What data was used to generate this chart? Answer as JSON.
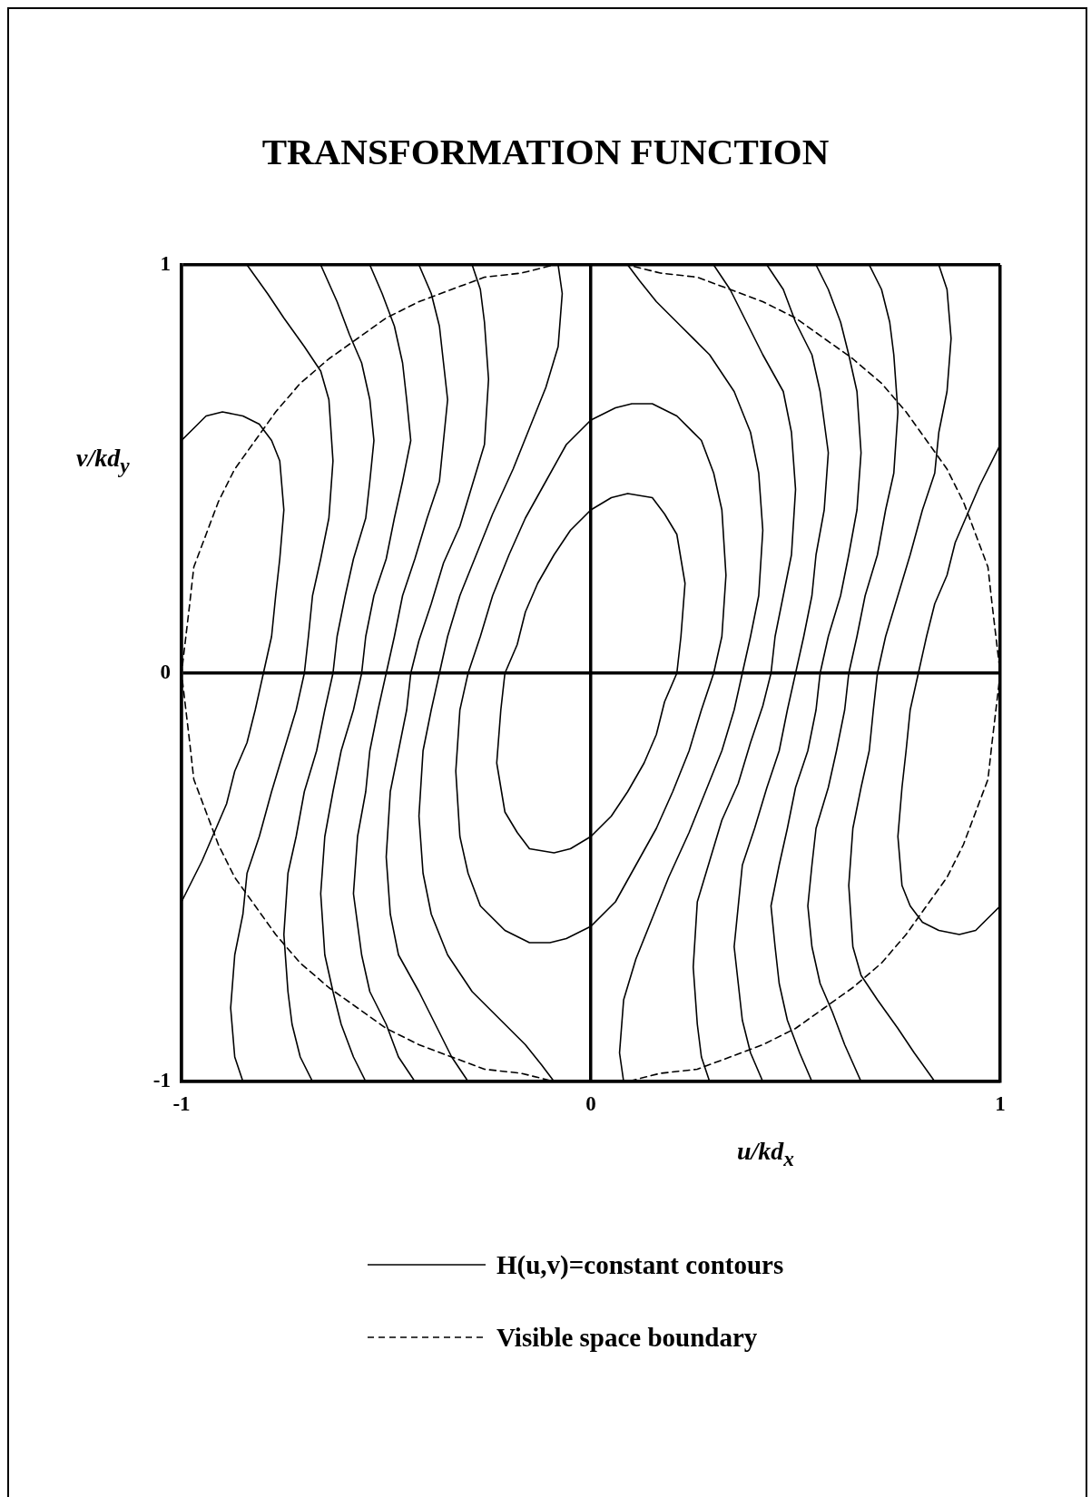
{
  "chart_data": {
    "type": "line",
    "title": "TRANSFORMATION FUNCTION",
    "xlabel": "u/kd$_{x}$",
    "ylabel": "v/kd$_{y}$",
    "xlim": [
      -1,
      1
    ],
    "ylim": [
      -1,
      1
    ],
    "xticks": [
      -1,
      0,
      1
    ],
    "yticks": [
      -1,
      0,
      1
    ],
    "grid": true,
    "legend": "bottom",
    "marker": "none",
    "series": [
      {
        "name": "H(u,v)=constant contours",
        "color": "#000000",
        "x": [
          -0.84,
          -0.79,
          -0.75,
          -0.7,
          -0.66,
          -0.64,
          -0.63,
          -0.64,
          -0.66,
          -0.68,
          -0.69,
          -0.7,
          -0.72,
          -0.75,
          -0.78,
          -0.81,
          -0.84,
          -0.85,
          -0.87,
          -0.88,
          -0.87,
          -0.85
        ],
        "values": [
          1,
          0.93,
          0.87,
          0.8,
          0.74,
          0.67,
          0.52,
          0.38,
          0.28,
          0.19,
          0.09,
          0,
          -0.09,
          -0.19,
          -0.29,
          -0.4,
          -0.49,
          -0.59,
          -0.69,
          -0.82,
          -0.94,
          -1
        ]
      },
      {
        "color": "#000000",
        "x": [
          -0.66,
          -0.62,
          -0.59,
          -0.56,
          -0.54,
          -0.53,
          -0.54,
          -0.55,
          -0.58,
          -0.6,
          -0.62,
          -0.63,
          -0.65,
          -0.67,
          -0.7,
          -0.72,
          -0.74,
          -0.75,
          -0.74,
          -0.73,
          -0.71,
          -0.68
        ],
        "values": [
          1,
          0.91,
          0.83,
          0.76,
          0.67,
          0.57,
          0.47,
          0.38,
          0.28,
          0.19,
          0.09,
          0,
          -0.09,
          -0.19,
          -0.29,
          -0.4,
          -0.49,
          -0.64,
          -0.78,
          -0.86,
          -0.94,
          -1
        ]
      },
      {
        "color": "#000000",
        "x": [
          -0.54,
          -0.51,
          -0.48,
          -0.46,
          -0.45,
          -0.44,
          -0.46,
          -0.48,
          -0.5,
          -0.53,
          -0.55,
          -0.56,
          -0.58,
          -0.61,
          -0.63,
          -0.65,
          -0.66,
          -0.65,
          -0.63,
          -0.61,
          -0.58,
          -0.55
        ],
        "values": [
          1,
          0.93,
          0.85,
          0.76,
          0.67,
          0.57,
          0.47,
          0.38,
          0.28,
          0.19,
          0.09,
          0,
          -0.09,
          -0.19,
          -0.29,
          -0.4,
          -0.54,
          -0.69,
          -0.78,
          -0.86,
          -0.94,
          -1
        ]
      },
      {
        "color": "#000000",
        "x": [
          -0.42,
          -0.39,
          -0.37,
          -0.36,
          -0.35,
          -0.36,
          -0.37,
          -0.4,
          -0.43,
          -0.46,
          -0.48,
          -0.5,
          -0.52,
          -0.54,
          -0.55,
          -0.57,
          -0.58,
          -0.56,
          -0.54,
          -0.5,
          -0.47,
          -0.43
        ],
        "values": [
          1,
          0.93,
          0.85,
          0.76,
          0.67,
          0.57,
          0.47,
          0.38,
          0.28,
          0.19,
          0.09,
          0,
          -0.09,
          -0.19,
          -0.29,
          -0.4,
          -0.54,
          -0.69,
          -0.78,
          -0.86,
          -0.94,
          -1
        ]
      },
      {
        "color": "#000000",
        "x": [
          -0.29,
          -0.27,
          -0.26,
          -0.25,
          -0.26,
          -0.29,
          -0.32,
          -0.36,
          -0.39,
          -0.42,
          -0.44,
          -0.45,
          -0.47,
          -0.49,
          -0.5,
          -0.49,
          -0.47,
          -0.42,
          -0.38,
          -0.34,
          -0.3
        ],
        "values": [
          1,
          0.94,
          0.86,
          0.72,
          0.56,
          0.46,
          0.36,
          0.27,
          0.17,
          0.08,
          0,
          -0.09,
          -0.19,
          -0.29,
          -0.45,
          -0.59,
          -0.69,
          -0.78,
          -0.86,
          -0.94,
          -1
        ]
      },
      {
        "color": "#000000",
        "x": [
          -0.08,
          -0.07,
          -0.08,
          -0.11,
          -0.15,
          -0.19,
          -0.24,
          -0.28,
          -0.32,
          -0.35,
          -0.37,
          -0.39,
          -0.41,
          -0.42,
          -0.41,
          -0.39,
          -0.35,
          -0.29,
          -0.22,
          -0.16,
          -0.12,
          -0.09
        ],
        "values": [
          1,
          0.93,
          0.8,
          0.7,
          0.6,
          0.5,
          0.39,
          0.29,
          0.19,
          0.09,
          0,
          -0.09,
          -0.19,
          -0.35,
          -0.49,
          -0.59,
          -0.69,
          -0.78,
          -0.85,
          -0.91,
          -0.96,
          -1
        ]
      },
      {
        "color": "#000000",
        "x": [
          -1,
          -0.97,
          -0.94,
          -0.9,
          -0.85,
          -0.81,
          -0.78,
          -0.76,
          -0.75,
          -0.76,
          -0.77,
          -0.78,
          -0.8,
          -0.82,
          -0.84,
          -0.87,
          -0.89,
          -0.92,
          -0.95,
          -1
        ],
        "values": [
          0.57,
          0.6,
          0.63,
          0.64,
          0.63,
          0.61,
          0.57,
          0.52,
          0.4,
          0.28,
          0.19,
          0.09,
          0,
          -0.09,
          -0.17,
          -0.24,
          -0.32,
          -0.39,
          -0.46,
          -0.56
        ]
      },
      {
        "color": "#000000",
        "x": [
          -0.23,
          -0.22,
          -0.21,
          -0.18,
          -0.16,
          -0.13,
          -0.09,
          -0.05,
          0,
          0.05,
          0.09,
          0.15,
          0.18,
          0.21,
          0.23,
          0.22,
          0.21,
          0.18,
          0.16,
          0.13,
          0.09,
          0.05,
          0,
          -0.05,
          -0.09,
          -0.15,
          -0.18,
          -0.21,
          -0.23,
          -0.22
        ],
        "values": [
          -0.22,
          -0.09,
          0,
          0.07,
          0.15,
          0.22,
          0.29,
          0.35,
          0.4,
          0.43,
          0.44,
          0.43,
          0.39,
          0.34,
          0.22,
          0.09,
          0,
          -0.07,
          -0.15,
          -0.22,
          -0.29,
          -0.35,
          -0.4,
          -0.43,
          -0.44,
          -0.43,
          -0.39,
          -0.34,
          -0.22,
          -0.09
        ]
      },
      {
        "color": "#000000",
        "x": [
          -0.33,
          -0.32,
          -0.3,
          -0.27,
          -0.24,
          -0.2,
          -0.16,
          -0.11,
          -0.06,
          0,
          0.06,
          0.1,
          0.15,
          0.21,
          0.27,
          0.3,
          0.32,
          0.33,
          0.32,
          0.3,
          0.27,
          0.24,
          0.2,
          0.16,
          0.11,
          0.06,
          0,
          -0.06,
          -0.1,
          -0.15,
          -0.21,
          -0.27,
          -0.3,
          -0.32,
          -0.33,
          -0.32
        ],
        "values": [
          -0.24,
          -0.09,
          0,
          0.09,
          0.19,
          0.29,
          0.38,
          0.47,
          0.56,
          0.62,
          0.65,
          0.66,
          0.66,
          0.63,
          0.57,
          0.49,
          0.4,
          0.24,
          0.09,
          0,
          -0.09,
          -0.19,
          -0.29,
          -0.38,
          -0.47,
          -0.56,
          -0.62,
          -0.65,
          -0.66,
          -0.66,
          -0.63,
          -0.57,
          -0.49,
          -0.4,
          -0.24,
          -0.09
        ]
      },
      {
        "color": "#000000",
        "x": [
          0.85,
          0.87,
          0.88,
          0.87,
          0.85,
          0.84,
          0.81,
          0.78,
          0.75,
          0.72,
          0.7,
          0.69,
          0.68,
          0.66,
          0.64,
          0.63,
          0.64,
          0.66,
          0.7,
          0.75,
          0.79,
          0.84
        ],
        "values": [
          1,
          0.94,
          0.82,
          0.69,
          0.59,
          0.49,
          0.4,
          0.29,
          0.19,
          0.09,
          0,
          -0.09,
          -0.19,
          -0.28,
          -0.38,
          -0.52,
          -0.67,
          -0.74,
          -0.8,
          -0.87,
          -0.93,
          -1
        ]
      },
      {
        "color": "#000000",
        "x": [
          0.68,
          0.71,
          0.73,
          0.74,
          0.75,
          0.74,
          0.72,
          0.7,
          0.67,
          0.65,
          0.63,
          0.62,
          0.6,
          0.58,
          0.55,
          0.54,
          0.53,
          0.54,
          0.56,
          0.59,
          0.62,
          0.66
        ],
        "values": [
          1,
          0.94,
          0.86,
          0.78,
          0.64,
          0.49,
          0.4,
          0.29,
          0.19,
          0.09,
          0,
          -0.09,
          -0.19,
          -0.28,
          -0.38,
          -0.47,
          -0.57,
          -0.67,
          -0.76,
          -0.83,
          -0.91,
          -1
        ]
      },
      {
        "color": "#000000",
        "x": [
          0.55,
          0.58,
          0.61,
          0.63,
          0.65,
          0.66,
          0.65,
          0.63,
          0.61,
          0.58,
          0.56,
          0.55,
          0.53,
          0.5,
          0.48,
          0.46,
          0.44,
          0.45,
          0.46,
          0.48,
          0.51,
          0.54
        ],
        "values": [
          1,
          0.94,
          0.86,
          0.78,
          0.69,
          0.54,
          0.4,
          0.29,
          0.19,
          0.09,
          0,
          -0.09,
          -0.19,
          -0.28,
          -0.38,
          -0.47,
          -0.57,
          -0.67,
          -0.76,
          -0.85,
          -0.93,
          -1
        ]
      },
      {
        "color": "#000000",
        "x": [
          0.43,
          0.47,
          0.5,
          0.54,
          0.56,
          0.58,
          0.57,
          0.55,
          0.54,
          0.52,
          0.5,
          0.48,
          0.46,
          0.43,
          0.4,
          0.37,
          0.36,
          0.35,
          0.36,
          0.37,
          0.39,
          0.42
        ],
        "values": [
          1,
          0.94,
          0.86,
          0.78,
          0.69,
          0.54,
          0.4,
          0.29,
          0.19,
          0.09,
          0,
          -0.09,
          -0.19,
          -0.28,
          -0.38,
          -0.47,
          -0.57,
          -0.67,
          -0.76,
          -0.85,
          -0.93,
          -1
        ]
      },
      {
        "color": "#000000",
        "x": [
          0.3,
          0.34,
          0.38,
          0.42,
          0.47,
          0.49,
          0.5,
          0.49,
          0.47,
          0.45,
          0.44,
          0.42,
          0.39,
          0.36,
          0.32,
          0.29,
          0.26,
          0.25,
          0.26,
          0.27,
          0.29
        ],
        "values": [
          1,
          0.94,
          0.86,
          0.78,
          0.69,
          0.59,
          0.45,
          0.29,
          0.19,
          0.09,
          0,
          -0.08,
          -0.17,
          -0.27,
          -0.36,
          -0.46,
          -0.56,
          -0.72,
          -0.86,
          -0.94,
          -1
        ]
      },
      {
        "color": "#000000",
        "x": [
          0.09,
          0.12,
          0.16,
          0.22,
          0.29,
          0.35,
          0.39,
          0.41,
          0.42,
          0.41,
          0.39,
          0.37,
          0.35,
          0.32,
          0.28,
          0.24,
          0.19,
          0.15,
          0.11,
          0.08,
          0.07,
          0.08
        ],
        "values": [
          1,
          0.96,
          0.91,
          0.85,
          0.78,
          0.69,
          0.59,
          0.49,
          0.35,
          0.19,
          0.09,
          0,
          -0.09,
          -0.19,
          -0.29,
          -0.39,
          -0.5,
          -0.6,
          -0.7,
          -0.8,
          -0.93,
          -1
        ]
      },
      {
        "color": "#000000",
        "x": [
          1,
          0.95,
          0.92,
          0.89,
          0.87,
          0.84,
          0.82,
          0.8,
          0.78,
          0.77,
          0.76,
          0.75,
          0.76,
          0.78,
          0.81,
          0.85,
          0.9,
          0.94,
          0.97,
          1
        ],
        "values": [
          0.56,
          0.46,
          0.39,
          0.32,
          0.24,
          0.17,
          0.09,
          0,
          -0.09,
          -0.19,
          -0.28,
          -0.4,
          -0.52,
          -0.57,
          -0.61,
          -0.63,
          -0.64,
          -0.63,
          -0.6,
          -0.57
        ]
      },
      {
        "name": "Visible space boundary",
        "color": "#000000",
        "line_style": "dashed",
        "x": [
          0,
          0.09,
          0.17,
          0.26,
          0.34,
          0.42,
          0.5,
          0.57,
          0.64,
          0.71,
          0.77,
          0.82,
          0.87,
          0.91,
          0.94,
          0.97,
          0.98,
          1,
          0.98,
          0.97,
          0.94,
          0.91,
          0.87,
          0.82,
          0.77,
          0.71,
          0.64,
          0.57,
          0.5,
          0.42,
          0.34,
          0.26,
          0.17,
          0.09,
          0,
          -0.09,
          -0.17,
          -0.26,
          -0.34,
          -0.42,
          -0.5,
          -0.57,
          -0.64,
          -0.71,
          -0.77,
          -0.82,
          -0.87,
          -0.91,
          -0.94,
          -0.97,
          -0.98,
          -1,
          -0.98,
          -0.97,
          -0.94,
          -0.91,
          -0.87,
          -0.82,
          -0.77,
          -0.71,
          -0.64,
          -0.57,
          -0.5,
          -0.42,
          -0.34,
          -0.26,
          -0.17,
          -0.09,
          0,
          0.09
        ],
        "values": [
          1,
          1,
          0.98,
          0.97,
          0.94,
          0.91,
          0.87,
          0.82,
          0.77,
          0.71,
          0.64,
          0.57,
          0.5,
          0.42,
          0.34,
          0.26,
          0.17,
          0,
          -0.17,
          -0.26,
          -0.34,
          -0.42,
          -0.5,
          -0.57,
          -0.64,
          -0.71,
          -0.77,
          -0.82,
          -0.87,
          -0.91,
          -0.94,
          -0.97,
          -0.98,
          -1,
          -1,
          -1,
          -0.98,
          -0.97,
          -0.94,
          -0.91,
          -0.87,
          -0.82,
          -0.77,
          -0.71,
          -0.64,
          -0.57,
          -0.5,
          -0.42,
          -0.34,
          -0.26,
          -0.17,
          0,
          0.17,
          0.26,
          0.34,
          0.42,
          0.5,
          0.57,
          0.64,
          0.71,
          0.77,
          0.82,
          0.87,
          0.91,
          0.94,
          0.97,
          0.98,
          1,
          1,
          1
        ]
      }
    ]
  }
}
